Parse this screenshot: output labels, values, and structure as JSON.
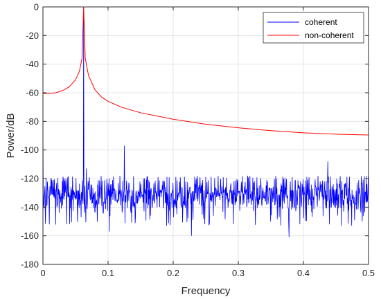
{
  "chart_data": {
    "type": "line",
    "title": "",
    "xlabel": "Frequency",
    "ylabel": "Power/dB",
    "xlim": [
      0,
      0.5
    ],
    "ylim": [
      -180,
      0
    ],
    "xticks": [
      0,
      0.1,
      0.2,
      0.3,
      0.4,
      0.5
    ],
    "xtick_labels": [
      "0",
      "0.1",
      "0.2",
      "0.3",
      "0.4",
      "0.5"
    ],
    "yticks": [
      -180,
      -160,
      -140,
      -120,
      -100,
      -80,
      -60,
      -40,
      -20,
      0
    ],
    "ytick_labels": [
      "-180",
      "-160",
      "-140",
      "-120",
      "-100",
      "-80",
      "-60",
      "-40",
      "-20",
      "0"
    ],
    "grid": true,
    "legend_position": "top-right",
    "series": [
      {
        "name": "coherent",
        "color": "#0000ff",
        "noise_floor_dB": -127,
        "noise_range_dB": [
          -161,
          -117
        ],
        "peaks": [
          {
            "x": 0,
            "y": -82
          },
          {
            "x": 0.0625,
            "y": 0
          },
          {
            "x": 0.0667,
            "y": -113
          },
          {
            "x": 0.125,
            "y": -97
          },
          {
            "x": 0.4375,
            "y": -108
          }
        ],
        "notable_dips": [
          {
            "x": 0.01,
            "y": -152
          },
          {
            "x": 0.102,
            "y": -157
          },
          {
            "x": 0.19,
            "y": -153
          },
          {
            "x": 0.228,
            "y": -160
          },
          {
            "x": 0.378,
            "y": -161
          },
          {
            "x": 0.44,
            "y": -152
          },
          {
            "x": 0.49,
            "y": -150
          }
        ]
      },
      {
        "name": "non-coherent",
        "color": "#ff0000",
        "points": [
          {
            "x": 0,
            "y": -60.5
          },
          {
            "x": 0.01,
            "y": -60.5
          },
          {
            "x": 0.02,
            "y": -60
          },
          {
            "x": 0.03,
            "y": -58.5
          },
          {
            "x": 0.04,
            "y": -56
          },
          {
            "x": 0.05,
            "y": -51
          },
          {
            "x": 0.056,
            "y": -45
          },
          {
            "x": 0.06,
            "y": -36
          },
          {
            "x": 0.0625,
            "y": 0
          },
          {
            "x": 0.065,
            "y": -36
          },
          {
            "x": 0.07,
            "y": -48
          },
          {
            "x": 0.08,
            "y": -58
          },
          {
            "x": 0.09,
            "y": -63
          },
          {
            "x": 0.1,
            "y": -66
          },
          {
            "x": 0.12,
            "y": -70
          },
          {
            "x": 0.15,
            "y": -74
          },
          {
            "x": 0.2,
            "y": -78.5
          },
          {
            "x": 0.25,
            "y": -82
          },
          {
            "x": 0.3,
            "y": -84.5
          },
          {
            "x": 0.35,
            "y": -86.5
          },
          {
            "x": 0.4,
            "y": -88
          },
          {
            "x": 0.45,
            "y": -89
          },
          {
            "x": 0.5,
            "y": -89.5
          }
        ]
      }
    ]
  }
}
